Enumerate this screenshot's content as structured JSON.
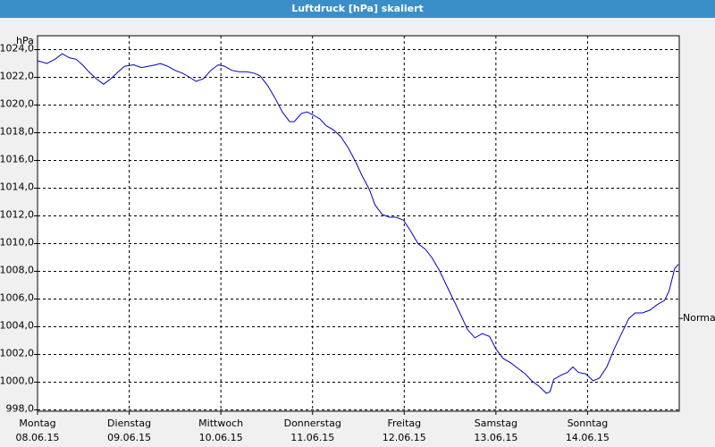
{
  "chart_data": {
    "type": "line",
    "title": "Luftdruck [hPa] skaliert",
    "y_unit": "hPa",
    "xlim": [
      0,
      7
    ],
    "ylim": [
      997.9,
      1025.0
    ],
    "xticks": [
      {
        "value": 0,
        "label": "Montag"
      },
      {
        "value": 1,
        "label": "Dienstag"
      },
      {
        "value": 2,
        "label": "Mittwoch"
      },
      {
        "value": 3,
        "label": "Donnerstag"
      },
      {
        "value": 4,
        "label": "Freitag"
      },
      {
        "value": 5,
        "label": "Samstag"
      },
      {
        "value": 6,
        "label": "Sonntag"
      }
    ],
    "xtick_dates": [
      "08.06.15",
      "09.06.15",
      "10.06.15",
      "11.06.15",
      "12.06.15",
      "13.06.15",
      "14.06.15"
    ],
    "yticks": [
      {
        "value": 998,
        "label": "998,0"
      },
      {
        "value": 1000,
        "label": "1000,0"
      },
      {
        "value": 1002,
        "label": "1002,0"
      },
      {
        "value": 1004,
        "label": "1004,0"
      },
      {
        "value": 1006,
        "label": "1006,0"
      },
      {
        "value": 1008,
        "label": "1008,0"
      },
      {
        "value": 1010,
        "label": "1010,0"
      },
      {
        "value": 1012,
        "label": "1012,0"
      },
      {
        "value": 1014,
        "label": "1014,0"
      },
      {
        "value": 1016,
        "label": "1016,0"
      },
      {
        "value": 1018,
        "label": "1018,0"
      },
      {
        "value": 1020,
        "label": "1020,0"
      },
      {
        "value": 1022,
        "label": "1022,0"
      },
      {
        "value": 1024,
        "label": "1024,0"
      }
    ],
    "grid": true,
    "annotation": {
      "text": "Normal",
      "value": 1004.6
    },
    "series": [
      {
        "color": "#0000c8",
        "x": [
          0.0,
          0.1,
          0.19,
          0.27,
          0.35,
          0.42,
          0.49,
          0.56,
          0.64,
          0.72,
          0.8,
          0.88,
          0.95,
          1.05,
          1.13,
          1.21,
          1.29,
          1.34,
          1.42,
          1.5,
          1.58,
          1.66,
          1.73,
          1.81,
          1.89,
          1.97,
          2.04,
          2.12,
          2.2,
          2.28,
          2.36,
          2.43,
          2.51,
          2.59,
          2.67,
          2.75,
          2.8,
          2.88,
          2.94,
          3.0,
          3.08,
          3.15,
          3.23,
          3.31,
          3.39,
          3.47,
          3.54,
          3.62,
          3.68,
          3.76,
          3.84,
          3.91,
          3.99,
          4.07,
          4.15,
          4.23,
          4.3,
          4.38,
          4.46,
          4.54,
          4.62,
          4.69,
          4.77,
          4.85,
          4.93,
          5.0,
          5.08,
          5.16,
          5.24,
          5.32,
          5.39,
          5.47,
          5.55,
          5.59,
          5.63,
          5.71,
          5.78,
          5.84,
          5.9,
          5.98,
          6.06,
          6.13,
          6.21,
          6.29,
          6.37,
          6.45,
          6.52,
          6.6,
          6.68,
          6.76,
          6.84,
          6.89,
          6.95,
          6.99
        ],
        "values": [
          1023.2,
          1023.0,
          1023.3,
          1023.7,
          1023.4,
          1023.3,
          1022.9,
          1022.4,
          1021.9,
          1021.5,
          1021.9,
          1022.4,
          1022.8,
          1022.9,
          1022.7,
          1022.8,
          1022.9,
          1023.0,
          1022.8,
          1022.5,
          1022.3,
          1022.0,
          1021.7,
          1021.9,
          1022.5,
          1022.9,
          1022.8,
          1022.5,
          1022.4,
          1022.4,
          1022.3,
          1022.1,
          1021.4,
          1020.5,
          1019.5,
          1018.8,
          1018.8,
          1019.4,
          1019.5,
          1019.3,
          1019.0,
          1018.5,
          1018.2,
          1017.7,
          1016.9,
          1015.9,
          1014.9,
          1013.9,
          1012.8,
          1012.1,
          1011.9,
          1011.9,
          1011.7,
          1010.9,
          1010.0,
          1009.6,
          1009.0,
          1008.1,
          1007.0,
          1005.9,
          1004.8,
          1003.8,
          1003.2,
          1003.5,
          1003.3,
          1002.4,
          1001.7,
          1001.4,
          1001.0,
          1000.6,
          1000.1,
          999.7,
          999.2,
          999.3,
          1000.2,
          1000.5,
          1000.7,
          1001.1,
          1000.7,
          1000.6,
          1000.1,
          1000.3,
          1001.1,
          1002.4,
          1003.5,
          1004.6,
          1005.0,
          1005.0,
          1005.2,
          1005.6,
          1005.9,
          1006.6,
          1008.2,
          1008.5
        ]
      }
    ]
  }
}
